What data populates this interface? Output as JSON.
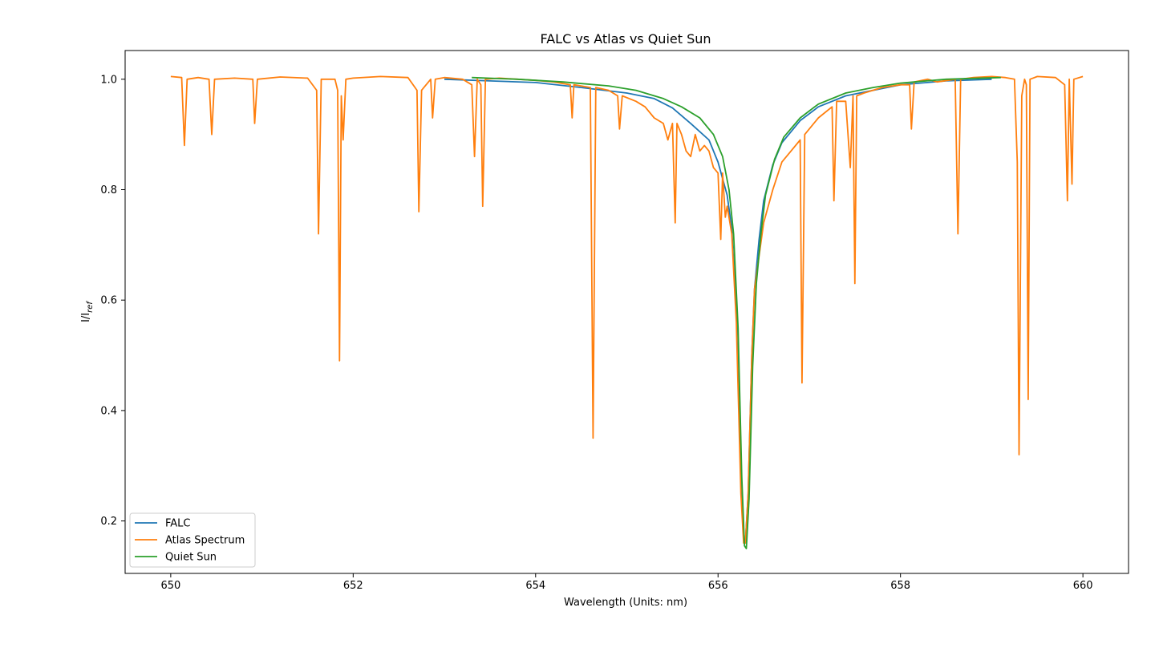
{
  "chart_data": {
    "type": "line",
    "title": "FALC vs Atlas vs Quiet Sun",
    "xlabel": "Wavelength (Units: nm)",
    "ylabel": {
      "main": "I/I",
      "sub": "ref"
    },
    "xlim": [
      649.5,
      660.5
    ],
    "ylim": [
      0.105,
      1.052
    ],
    "xticks": [
      650,
      652,
      654,
      656,
      658,
      660
    ],
    "yticks": [
      0.2,
      0.4,
      0.6,
      0.8,
      1.0
    ],
    "xtick_labels": [
      "650",
      "652",
      "654",
      "656",
      "658",
      "660"
    ],
    "ytick_labels": [
      "0.2",
      "0.4",
      "0.6",
      "0.8",
      "1.0"
    ],
    "grid": false,
    "legend_position": "lower-left",
    "series": [
      {
        "name": "FALC",
        "color": "#1f77b4",
        "x": [
          653.0,
          653.5,
          654.0,
          654.5,
          655.0,
          655.3,
          655.5,
          655.7,
          655.9,
          656.0,
          656.1,
          656.15,
          656.2,
          656.25,
          656.28,
          656.3,
          656.33,
          656.37,
          656.4,
          656.45,
          656.5,
          656.6,
          656.7,
          656.9,
          657.1,
          657.4,
          657.7,
          658.0,
          658.5,
          659.0
        ],
        "values": [
          1.0,
          0.997,
          0.994,
          0.985,
          0.975,
          0.965,
          0.948,
          0.92,
          0.89,
          0.85,
          0.79,
          0.73,
          0.58,
          0.28,
          0.17,
          0.16,
          0.25,
          0.5,
          0.62,
          0.71,
          0.78,
          0.845,
          0.885,
          0.925,
          0.95,
          0.97,
          0.98,
          0.99,
          0.997,
          1.0
        ]
      },
      {
        "name": "Atlas Spectrum",
        "color": "#ff7f0e",
        "x": [
          650.0,
          650.12,
          650.15,
          650.18,
          650.3,
          650.42,
          650.45,
          650.48,
          650.7,
          650.9,
          650.92,
          650.95,
          651.2,
          651.5,
          651.6,
          651.62,
          651.65,
          651.8,
          651.83,
          651.85,
          651.87,
          651.89,
          651.92,
          652.0,
          652.3,
          652.6,
          652.7,
          652.72,
          652.75,
          652.85,
          652.87,
          652.9,
          653.0,
          653.2,
          653.3,
          653.33,
          653.36,
          653.4,
          653.42,
          653.45,
          653.6,
          653.8,
          654.0,
          654.2,
          654.38,
          654.4,
          654.42,
          654.6,
          654.63,
          654.66,
          654.8,
          654.9,
          654.92,
          654.95,
          655.1,
          655.2,
          655.3,
          655.4,
          655.45,
          655.5,
          655.53,
          655.55,
          655.6,
          655.65,
          655.7,
          655.75,
          655.8,
          655.85,
          655.9,
          655.95,
          656.0,
          656.03,
          656.05,
          656.08,
          656.1,
          656.15,
          656.2,
          656.25,
          656.28,
          656.3,
          656.33,
          656.37,
          656.4,
          656.45,
          656.5,
          656.6,
          656.7,
          656.8,
          656.9,
          656.92,
          656.95,
          657.1,
          657.25,
          657.27,
          657.3,
          657.4,
          657.45,
          657.48,
          657.5,
          657.52,
          657.6,
          657.8,
          658.0,
          658.1,
          658.12,
          658.15,
          658.3,
          658.4,
          658.6,
          658.63,
          658.66,
          658.8,
          659.0,
          659.15,
          659.25,
          659.28,
          659.3,
          659.33,
          659.36,
          659.38,
          659.4,
          659.42,
          659.5,
          659.7,
          659.8,
          659.83,
          659.85,
          659.88,
          659.9,
          660.0
        ],
        "values": [
          1.005,
          1.003,
          0.88,
          1.0,
          1.003,
          1.0,
          0.9,
          1.0,
          1.002,
          1.0,
          0.92,
          1.0,
          1.004,
          1.002,
          0.98,
          0.72,
          1.0,
          1.0,
          0.98,
          0.49,
          0.97,
          0.89,
          1.0,
          1.002,
          1.005,
          1.003,
          0.98,
          0.76,
          0.98,
          1.0,
          0.93,
          1.0,
          1.003,
          1.0,
          0.99,
          0.86,
          1.0,
          0.99,
          0.77,
          1.0,
          1.002,
          1.0,
          0.998,
          0.995,
          0.99,
          0.93,
          0.99,
          0.985,
          0.35,
          0.985,
          0.98,
          0.97,
          0.91,
          0.97,
          0.96,
          0.95,
          0.93,
          0.92,
          0.89,
          0.92,
          0.74,
          0.92,
          0.9,
          0.87,
          0.86,
          0.9,
          0.87,
          0.88,
          0.87,
          0.84,
          0.83,
          0.71,
          0.83,
          0.75,
          0.77,
          0.72,
          0.56,
          0.25,
          0.16,
          0.16,
          0.25,
          0.5,
          0.62,
          0.68,
          0.74,
          0.8,
          0.85,
          0.87,
          0.89,
          0.45,
          0.9,
          0.93,
          0.95,
          0.78,
          0.96,
          0.96,
          0.84,
          0.97,
          0.63,
          0.97,
          0.975,
          0.985,
          0.99,
          0.99,
          0.91,
          0.995,
          1.0,
          0.995,
          1.0,
          0.72,
          1.0,
          1.003,
          1.005,
          1.003,
          1.0,
          0.85,
          0.32,
          0.97,
          1.0,
          0.99,
          0.42,
          1.0,
          1.005,
          1.003,
          0.99,
          0.78,
          1.0,
          0.81,
          1.0,
          1.005
        ]
      },
      {
        "name": "Quiet Sun",
        "color": "#2ca02c",
        "x": [
          653.3,
          653.8,
          654.3,
          654.8,
          655.1,
          655.4,
          655.6,
          655.8,
          655.95,
          656.05,
          656.12,
          656.17,
          656.22,
          656.26,
          656.29,
          656.31,
          656.34,
          656.38,
          656.42,
          656.47,
          656.52,
          656.62,
          656.72,
          656.9,
          657.1,
          657.4,
          657.7,
          658.0,
          658.5,
          659.1
        ],
        "values": [
          1.003,
          1.0,
          0.995,
          0.988,
          0.98,
          0.965,
          0.95,
          0.93,
          0.9,
          0.86,
          0.8,
          0.72,
          0.55,
          0.28,
          0.155,
          0.15,
          0.24,
          0.48,
          0.63,
          0.72,
          0.79,
          0.855,
          0.895,
          0.93,
          0.955,
          0.975,
          0.985,
          0.993,
          1.0,
          1.003
        ]
      }
    ]
  }
}
